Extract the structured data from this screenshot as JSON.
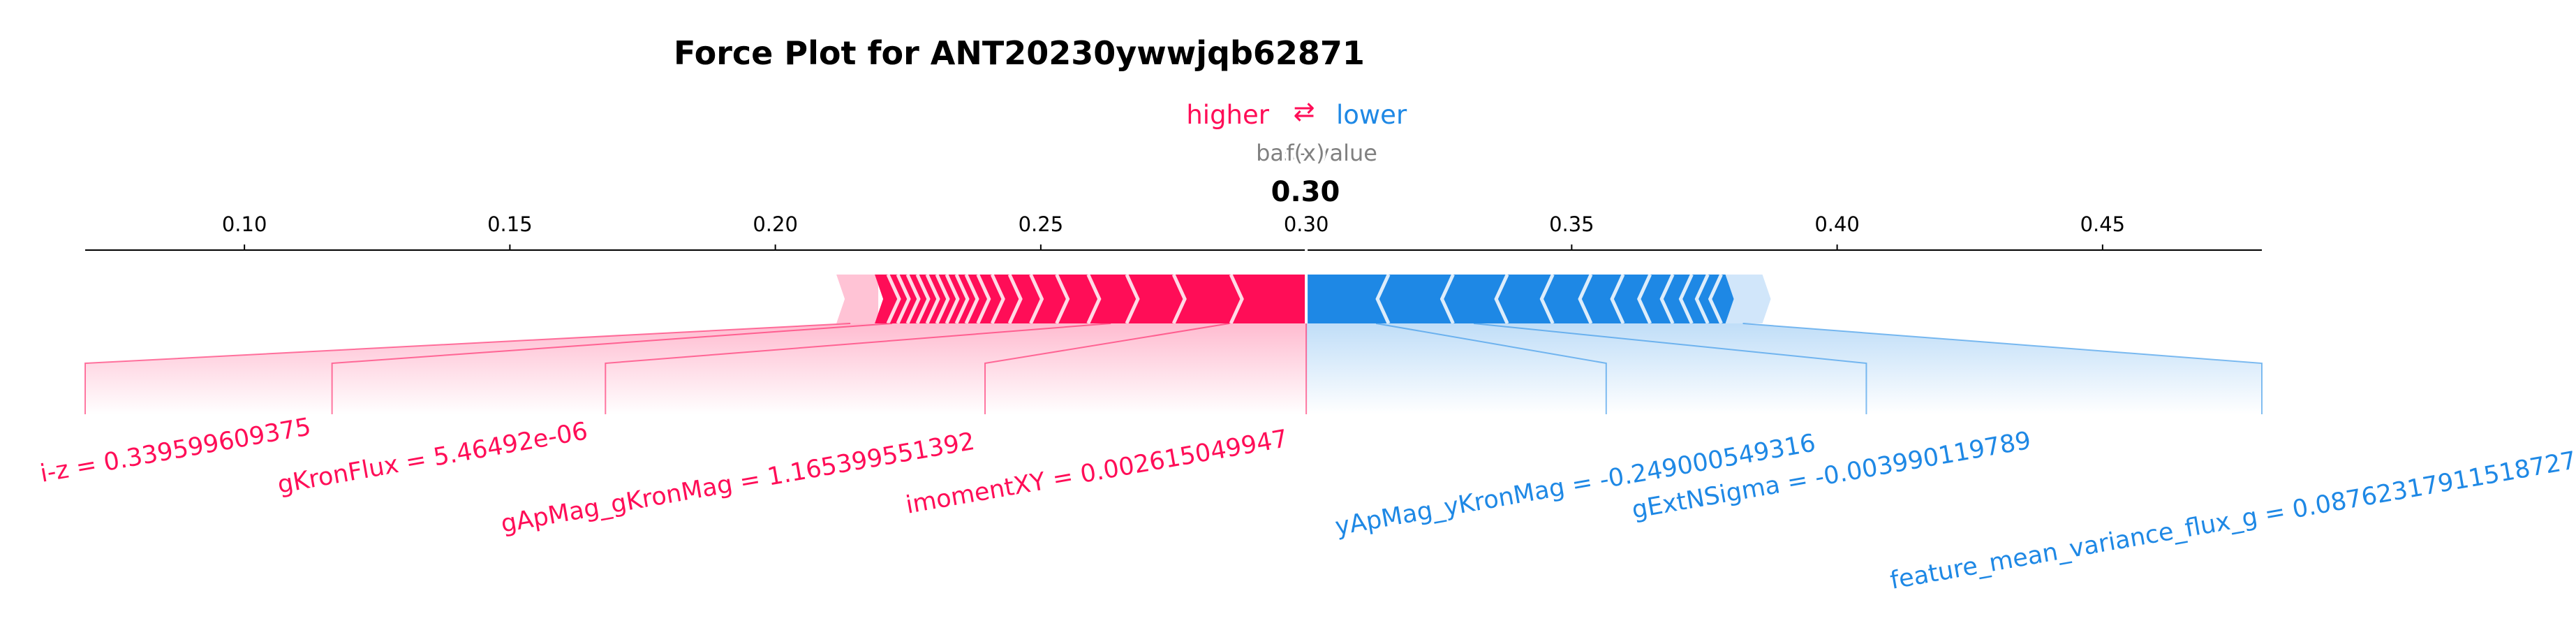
{
  "chart_data": {
    "type": "force",
    "title": "Force Plot for ANT20230ywwjqb62871",
    "legend": {
      "higher": "higher",
      "lower": "lower",
      "arrow": "⇄"
    },
    "base_value_label": "base value",
    "fx_label": "f(x)",
    "output_value": 0.3,
    "output_value_text": "0.30",
    "xlim": [
      0.07,
      0.48
    ],
    "ticks": [
      0.1,
      0.15,
      0.2,
      0.25,
      0.3,
      0.35,
      0.4,
      0.45
    ],
    "tick_labels": [
      "0.10",
      "0.15",
      "0.20",
      "0.25",
      "0.30",
      "0.35",
      "0.40",
      "0.45"
    ],
    "colors": {
      "positive": "#ff0d57",
      "negative": "#1e88e5",
      "positive_light": "#ffc3d5",
      "negative_light": "#d1e6fa",
      "base_text": "#808080"
    },
    "positive_features": [
      {
        "label": "i-z = 0.339599609375",
        "width": 0.0
      },
      {
        "label": "gKronFlux = 5.46492e-06",
        "width": 0.0
      },
      {
        "label": "gApMag_gKronMag = 1.165399551392",
        "width": 0.0
      },
      {
        "label": "imomentXY = 0.002615049947",
        "width": 0.0
      }
    ],
    "negative_features": [
      {
        "label": "yApMag_yKronMag = -0.249000549316",
        "width": 0.0
      },
      {
        "label": "gExtNSigma = -0.003990119789",
        "width": 0.0
      },
      {
        "label": "feature_mean_variance_flux_g = 0.08762317911518727",
        "width": 0.0
      }
    ],
    "positive_extent": [
      0.2115,
      0.3
    ],
    "negative_extent": [
      0.3,
      0.3875
    ],
    "label_anchors_positive": [
      0.07,
      0.1165,
      0.168,
      0.2395
    ],
    "label_anchors_negative": [
      0.3565,
      0.4055,
      0.48
    ]
  }
}
